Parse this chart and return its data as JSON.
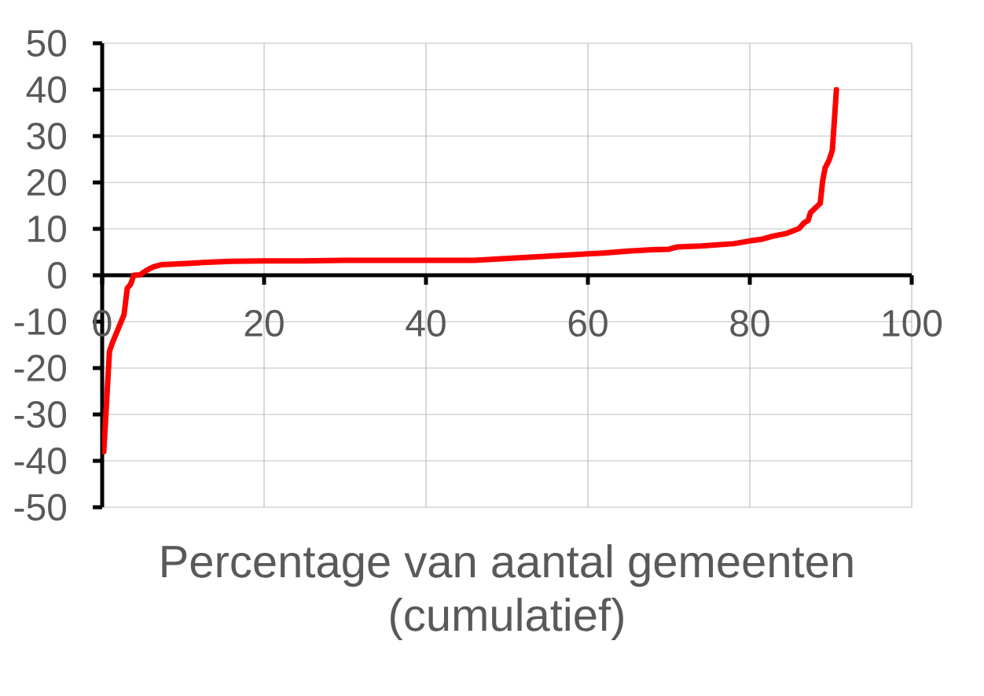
{
  "chart_data": {
    "type": "line",
    "xlabel": "Percentage van aantal gemeenten (cumulatief)",
    "x": [
      0.2,
      0.9,
      1.3,
      1.9,
      2.7,
      3.1,
      3.5,
      3.9,
      4.7,
      5.5,
      6.3,
      7.4,
      10,
      13,
      16,
      20,
      25,
      30,
      40,
      46,
      49,
      52,
      55,
      58,
      60,
      62,
      65,
      68,
      70,
      71,
      74,
      78,
      80,
      81.6,
      82.8,
      84.5,
      86.1,
      86.7,
      87.2,
      87.5,
      88.7,
      89.0,
      89.3,
      89.8,
      90.2,
      90.7
    ],
    "values": [
      -38,
      -16.4,
      -14.4,
      -11.9,
      -8.5,
      -2.8,
      -2.0,
      0,
      0.1,
      1.1,
      1.8,
      2.3,
      2.5,
      2.8,
      3.0,
      3.1,
      3.1,
      3.2,
      3.2,
      3.2,
      3.5,
      3.8,
      4.1,
      4.4,
      4.6,
      4.8,
      5.2,
      5.5,
      5.6,
      6.1,
      6.3,
      6.8,
      7.4,
      7.8,
      8.4,
      9.0,
      10.1,
      11.3,
      11.8,
      13.5,
      15.5,
      20.3,
      23.1,
      24.8,
      27.0,
      40
    ],
    "color": "#ff0000",
    "line_style": "solid",
    "xlim": [
      0,
      100
    ],
    "ylim": [
      -50,
      50
    ],
    "xticks": [
      0,
      20,
      40,
      60,
      80,
      100
    ],
    "yticks": [
      -50,
      -40,
      -30,
      -20,
      -10,
      0,
      10,
      20,
      30,
      40,
      50
    ],
    "grid": true
  }
}
